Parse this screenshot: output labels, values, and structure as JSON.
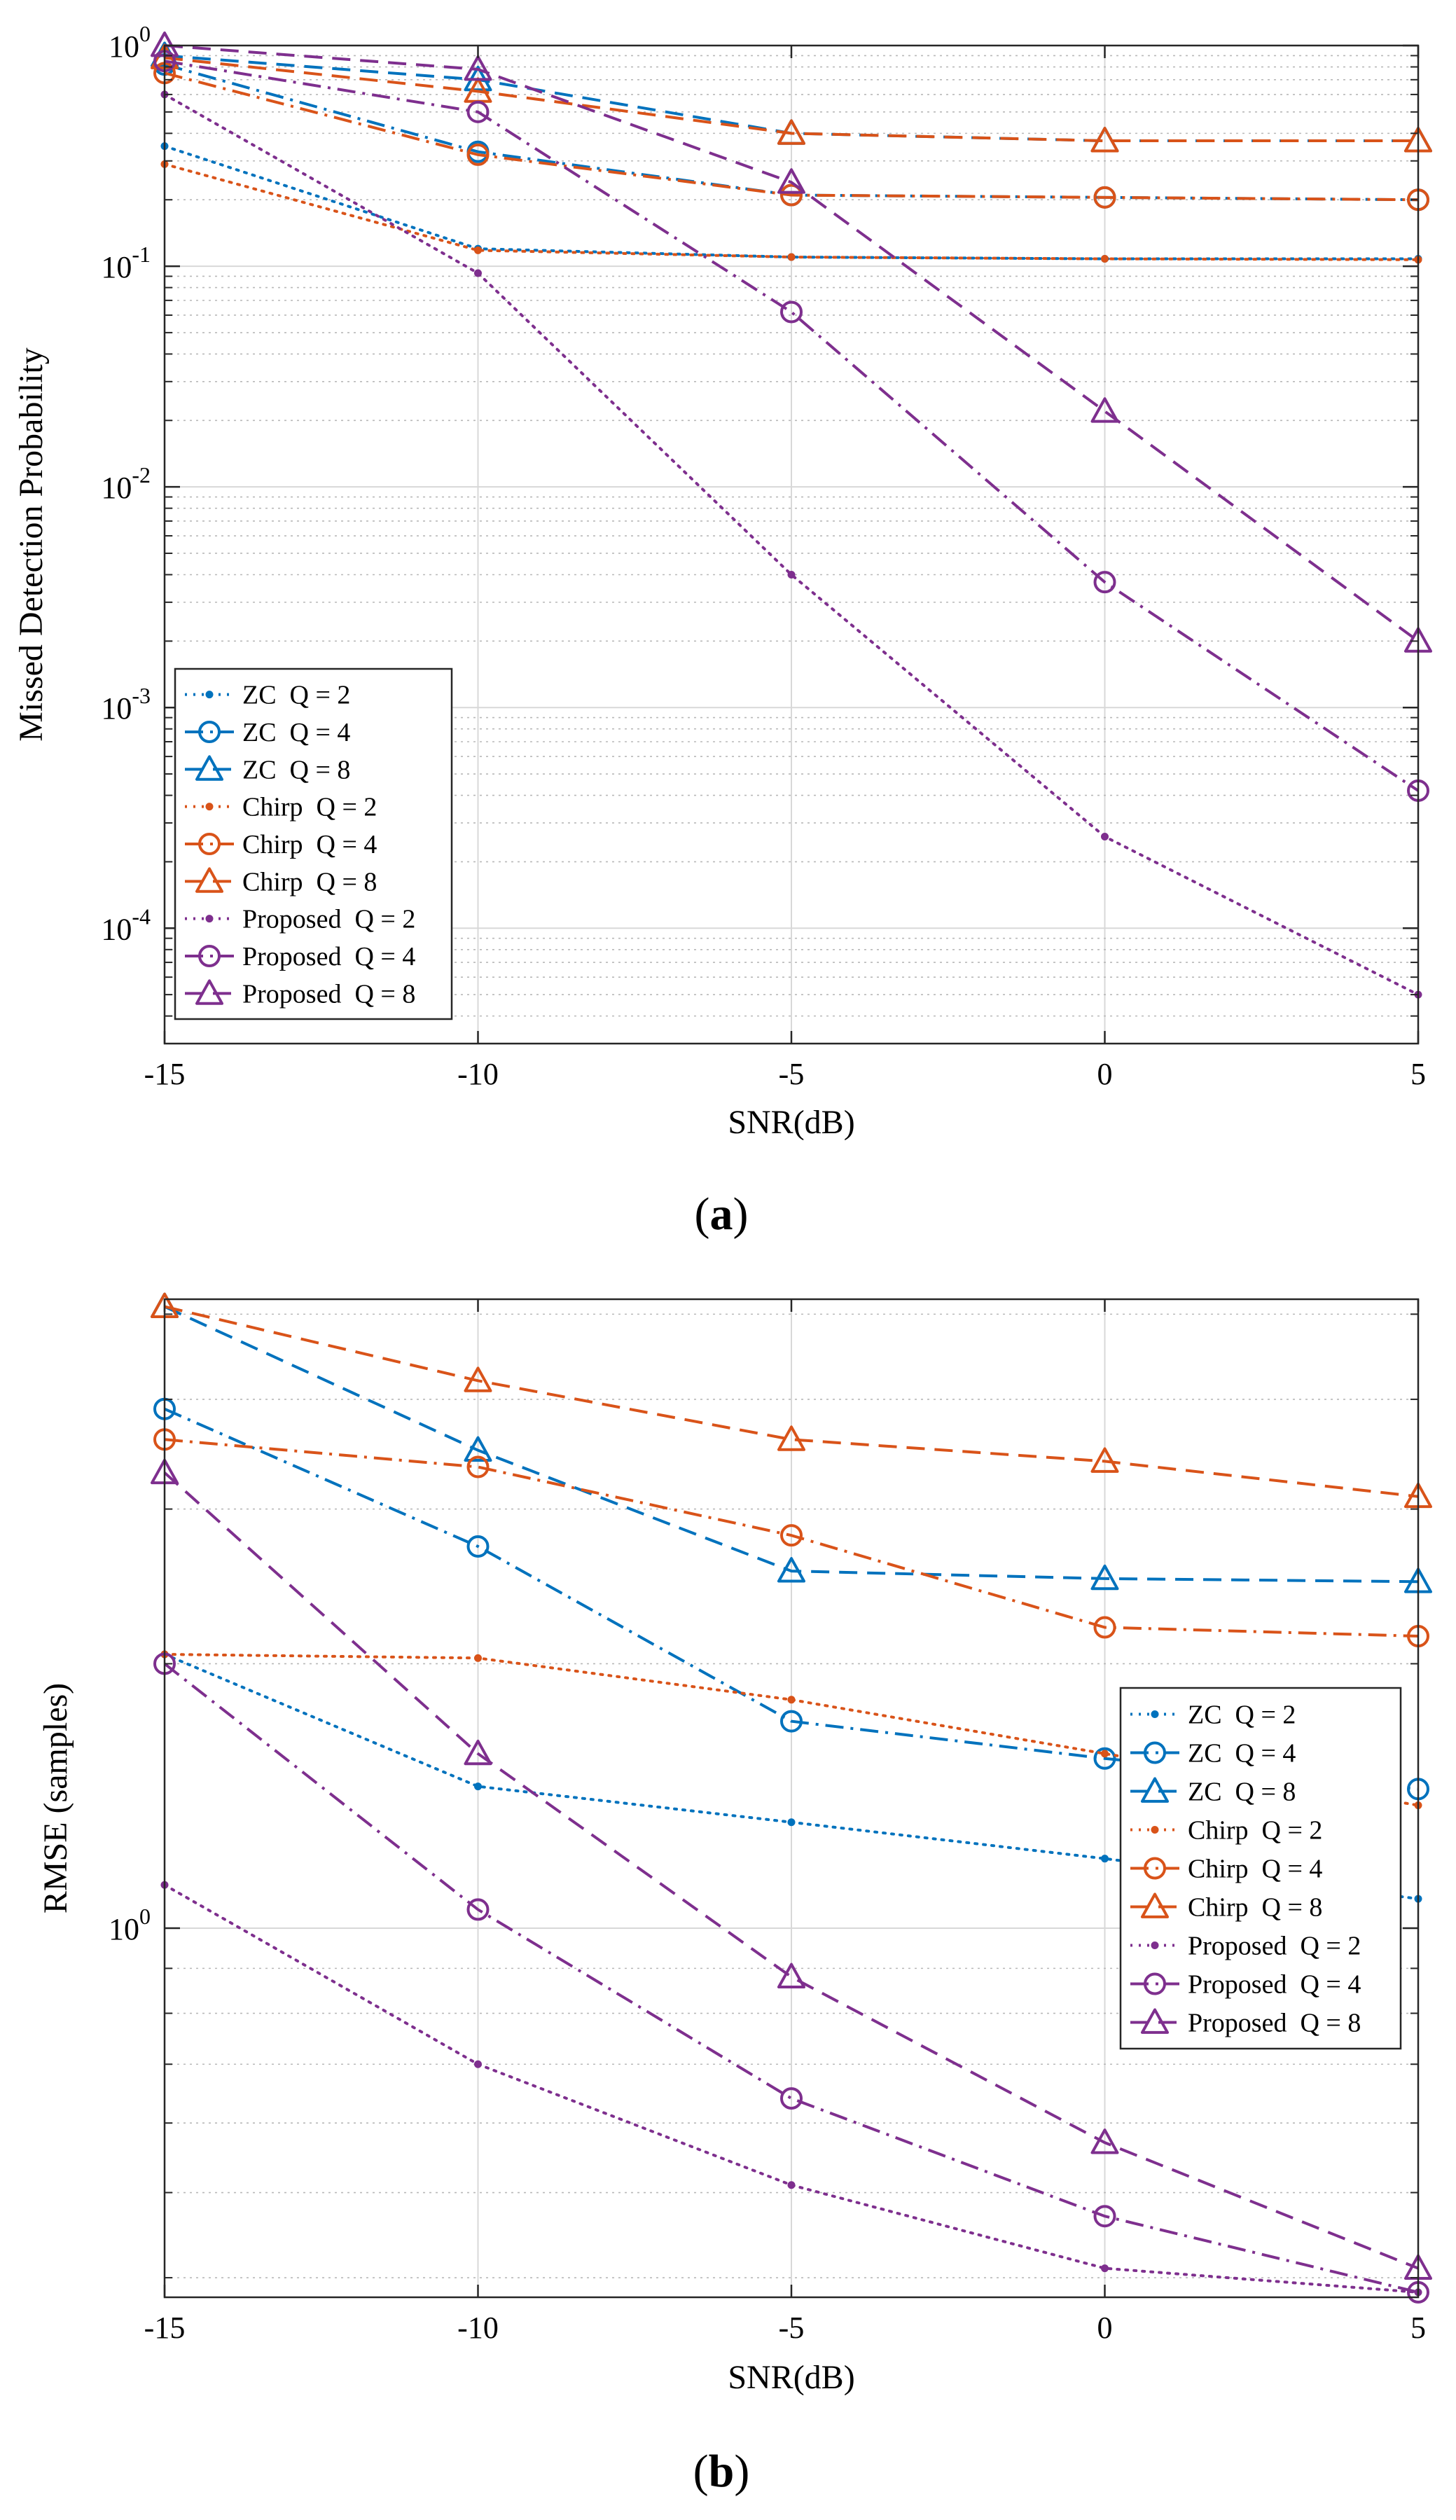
{
  "colors": {
    "zc": "#0072BD",
    "chirp": "#D95319",
    "proposed": "#7E2F8E",
    "grid_major": "#d8d8d8",
    "grid_minor": "#b8b8b8",
    "axis": "#262626"
  },
  "chart_data": [
    {
      "type": "line",
      "caption": "(a)",
      "caption_letter": "a",
      "xlabel": "SNR(dB)",
      "ylabel": "Missed Detection Probability",
      "yscale": "log",
      "xlim": [
        -15,
        5
      ],
      "ylim": [
        3e-05,
        1
      ],
      "x": [
        -15,
        -10,
        -5,
        0,
        5
      ],
      "x_ticks": [
        "-15",
        "-10",
        "-5",
        "0",
        "5"
      ],
      "y_ticks": [
        {
          "base": "10",
          "exp": "0",
          "value": 1
        },
        {
          "base": "10",
          "exp": "-1",
          "value": 0.1
        },
        {
          "base": "10",
          "exp": "-2",
          "value": 0.01
        },
        {
          "base": "10",
          "exp": "-3",
          "value": 0.001
        },
        {
          "base": "10",
          "exp": "-4",
          "value": 0.0001
        }
      ],
      "grid": true,
      "legend_position": "bottom-left",
      "series": [
        {
          "name": "ZC  Q = 2",
          "group": "zc",
          "marker": "dot",
          "line": "dotted",
          "values": [
            0.35,
            0.12,
            0.11,
            0.108,
            0.108
          ]
        },
        {
          "name": "ZC  Q = 4",
          "group": "zc",
          "marker": "circle",
          "line": "dashdot",
          "values": [
            0.82,
            0.33,
            0.21,
            0.205,
            0.2
          ]
        },
        {
          "name": "ZC  Q = 8",
          "group": "zc",
          "marker": "triangle",
          "line": "dashed",
          "values": [
            0.9,
            0.7,
            0.4,
            0.37,
            0.37
          ]
        },
        {
          "name": "Chirp  Q = 2",
          "group": "chirp",
          "marker": "dot",
          "line": "dotted",
          "values": [
            0.29,
            0.118,
            0.11,
            0.108,
            0.107
          ]
        },
        {
          "name": "Chirp  Q = 4",
          "group": "chirp",
          "marker": "circle",
          "line": "dashdot",
          "values": [
            0.75,
            0.32,
            0.21,
            0.205,
            0.2
          ]
        },
        {
          "name": "Chirp  Q = 8",
          "group": "chirp",
          "marker": "triangle",
          "line": "dashed",
          "values": [
            0.88,
            0.62,
            0.4,
            0.37,
            0.37
          ]
        },
        {
          "name": "Proposed  Q = 2",
          "group": "proposed",
          "marker": "dot",
          "line": "dotted",
          "values": [
            0.6,
            0.093,
            0.004,
            0.00026,
            5e-05
          ]
        },
        {
          "name": "Proposed  Q = 4",
          "group": "proposed",
          "marker": "circle",
          "line": "dashdot",
          "values": [
            0.85,
            0.5,
            0.062,
            0.0037,
            0.00042
          ]
        },
        {
          "name": "Proposed  Q = 8",
          "group": "proposed",
          "marker": "triangle",
          "line": "dashed",
          "values": [
            1.0,
            0.78,
            0.24,
            0.022,
            0.002
          ]
        }
      ]
    },
    {
      "type": "line",
      "caption": "(b)",
      "caption_letter": "b",
      "xlabel": "SNR(dB)",
      "ylabel": "RMSE (samples)",
      "yscale": "log",
      "xlim": [
        -15,
        5
      ],
      "ylim": [
        0.38,
        5.2
      ],
      "x": [
        -15,
        -10,
        -5,
        0,
        5
      ],
      "x_ticks": [
        "-15",
        "-10",
        "-5",
        "0",
        "5"
      ],
      "y_ticks": [
        {
          "base": "10",
          "exp": "0",
          "value": 1
        }
      ],
      "grid": true,
      "legend_position": "right-middle",
      "series": [
        {
          "name": "ZC  Q = 2",
          "group": "zc",
          "marker": "dot",
          "line": "dotted",
          "values": [
            2.05,
            1.45,
            1.32,
            1.2,
            1.08
          ]
        },
        {
          "name": "ZC  Q = 4",
          "group": "zc",
          "marker": "circle",
          "line": "dashdot",
          "values": [
            3.9,
            2.72,
            1.72,
            1.56,
            1.44
          ]
        },
        {
          "name": "ZC  Q = 8",
          "group": "zc",
          "marker": "triangle",
          "line": "dashed",
          "values": [
            5.1,
            3.5,
            2.55,
            2.5,
            2.48
          ]
        },
        {
          "name": "Chirp  Q = 2",
          "group": "chirp",
          "marker": "dot",
          "line": "dotted",
          "values": [
            2.05,
            2.03,
            1.82,
            1.58,
            1.38
          ]
        },
        {
          "name": "Chirp  Q = 4",
          "group": "chirp",
          "marker": "circle",
          "line": "dashdot",
          "values": [
            3.6,
            3.35,
            2.8,
            2.2,
            2.15
          ]
        },
        {
          "name": "Chirp  Q = 8",
          "group": "chirp",
          "marker": "triangle",
          "line": "dashed",
          "values": [
            5.1,
            4.2,
            3.6,
            3.4,
            3.1
          ]
        },
        {
          "name": "Proposed  Q = 2",
          "group": "proposed",
          "marker": "dot",
          "line": "dotted",
          "values": [
            1.12,
            0.7,
            0.51,
            0.41,
            0.385
          ]
        },
        {
          "name": "Proposed  Q = 4",
          "group": "proposed",
          "marker": "circle",
          "line": "dashdot",
          "values": [
            2.0,
            1.05,
            0.64,
            0.47,
            0.385
          ]
        },
        {
          "name": "Proposed  Q = 8",
          "group": "proposed",
          "marker": "triangle",
          "line": "dashed",
          "values": [
            3.3,
            1.58,
            0.88,
            0.57,
            0.41
          ]
        }
      ]
    }
  ]
}
